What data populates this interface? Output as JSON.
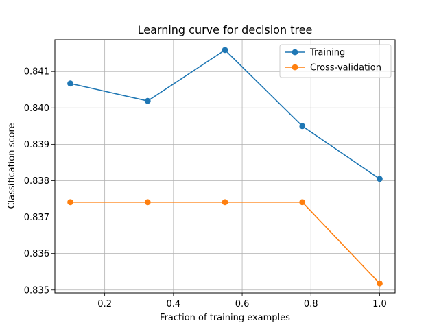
{
  "chart_data": {
    "type": "line",
    "title": "Learning curve for decision tree",
    "xlabel": "Fraction of training examples",
    "ylabel": "Classification score",
    "xlim": [
      0.055,
      1.045
    ],
    "ylim": [
      0.83492,
      0.84187
    ],
    "x_ticks": [
      0.2,
      0.4,
      0.6,
      0.8,
      1.0
    ],
    "x_tick_labels": [
      "0.2",
      "0.4",
      "0.6",
      "0.8",
      "1.0"
    ],
    "y_ticks": [
      0.835,
      0.836,
      0.837,
      0.838,
      0.839,
      0.84,
      0.841
    ],
    "y_tick_labels": [
      "0.835",
      "0.836",
      "0.837",
      "0.838",
      "0.839",
      "0.840",
      "0.841"
    ],
    "grid": true,
    "legend_position": "top-right",
    "x": [
      0.1,
      0.325,
      0.55,
      0.775,
      1.0
    ],
    "series": [
      {
        "name": "Training",
        "color": "#1f77b4",
        "marker": "circle",
        "values": [
          0.84067,
          0.84019,
          0.84159,
          0.8395,
          0.83805
        ]
      },
      {
        "name": "Cross-validation",
        "color": "#ff7f0e",
        "marker": "circle",
        "values": [
          0.83741,
          0.83741,
          0.83741,
          0.83741,
          0.83518
        ]
      }
    ]
  }
}
